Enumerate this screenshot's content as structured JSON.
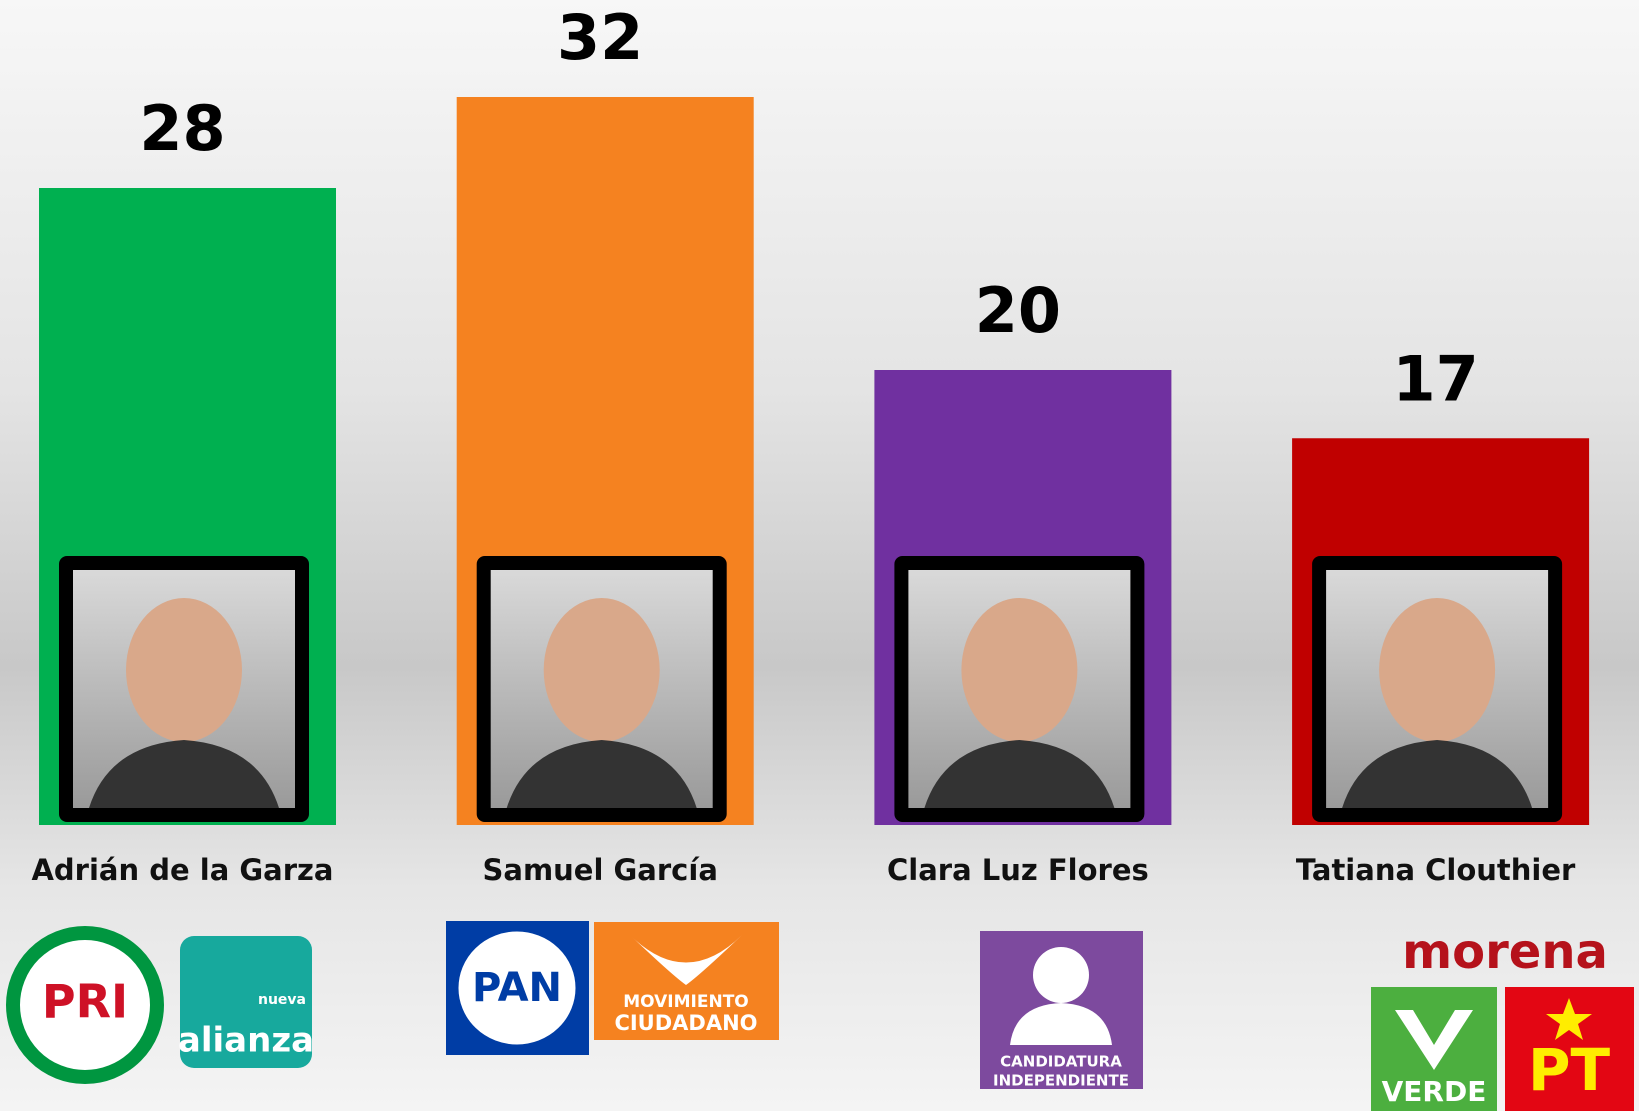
{
  "chart_data": {
    "type": "bar",
    "categories": [
      "Adrián de la Garza",
      "Samuel García",
      "Clara Luz Flores",
      "Tatiana Clouthier"
    ],
    "values": [
      28,
      32,
      20,
      17
    ],
    "colors": [
      "#00b050",
      "#f58220",
      "#7030a0",
      "#c00000"
    ],
    "party_logos": [
      [
        "PRI",
        "nueva",
        "alianza"
      ],
      [
        "PAN",
        "MOVIMIENTO",
        "CIUDADANO"
      ],
      [
        "CANDIDATURA",
        "INDEPENDIENTE"
      ],
      [
        "morena",
        "VERDE",
        "PT"
      ]
    ]
  }
}
